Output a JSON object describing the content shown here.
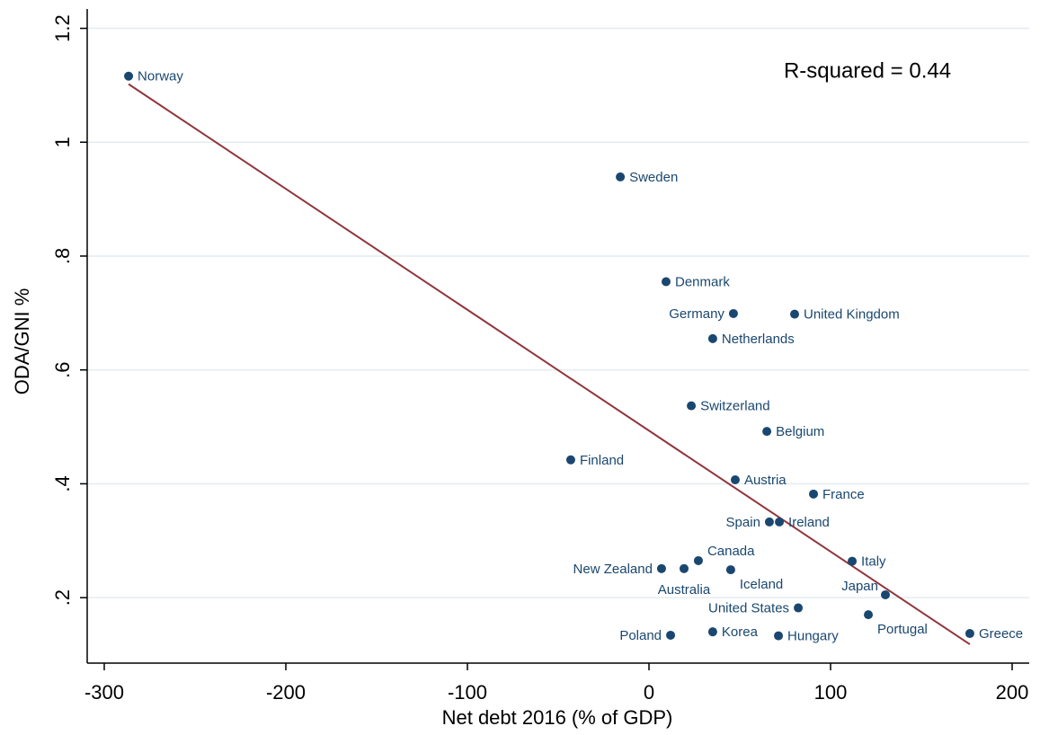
{
  "chart_data": {
    "type": "scatter",
    "annotation": "R-squared = 0.44",
    "x_label": "Net debt 2016 (% of GDP)",
    "y_label": "ODA/GNI %",
    "color": "#1a476f",
    "grid": true,
    "xlim": [
      -309.4,
      209.4
    ],
    "ylim": [
      0.085,
      1.234
    ],
    "xticks": [
      -300,
      -200,
      -100,
      0,
      100,
      200
    ],
    "yticks": [
      {
        "value": 0.2,
        "label": ".2"
      },
      {
        "value": 0.4,
        "label": ".4"
      },
      {
        "value": 0.6,
        "label": ".6"
      },
      {
        "value": 0.8,
        "label": ".8"
      },
      1,
      1.2
    ],
    "labels": [
      "Norway",
      "Sweden",
      "Denmark",
      "Germany",
      "United Kingdom",
      "Netherlands",
      "Switzerland",
      "Belgium",
      "Finland",
      "Austria",
      "France",
      "Spain",
      "Ireland",
      "Canada",
      "New Zealand",
      "Australia",
      "Iceland",
      "Italy",
      "Japan",
      "United States",
      "Portugal",
      "Greece",
      "Poland",
      "Korea",
      "Hungary"
    ],
    "x": [
      -286.6,
      -15.8,
      9.4,
      46.5,
      80.2,
      35.1,
      23.3,
      64.9,
      -43.1,
      47.5,
      90.6,
      66.3,
      71.8,
      27.2,
      6.9,
      19.3,
      45.0,
      111.9,
      130.2,
      82.2,
      120.8,
      176.7,
      11.9,
      35.1,
      71.3
    ],
    "values": [
      1.116,
      0.939,
      0.755,
      0.699,
      0.698,
      0.655,
      0.537,
      0.492,
      0.442,
      0.407,
      0.382,
      0.333,
      0.333,
      0.265,
      0.251,
      0.251,
      0.249,
      0.264,
      0.205,
      0.182,
      0.17,
      0.137,
      0.134,
      0.14,
      0.133
    ],
    "trend_line": {
      "color": "#90353b",
      "x": [
        -286.6,
        176.7
      ],
      "y": [
        1.102,
        0.118
      ]
    }
  }
}
